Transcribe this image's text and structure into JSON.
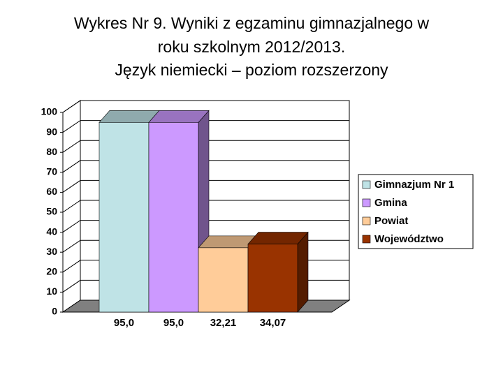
{
  "chart_data": {
    "type": "bar3d",
    "title": [
      "Wykres Nr 9. Wyniki z egzaminu gimnazjalnego   w",
      "roku szkolnym 2012/2013.",
      "Język niemiecki – poziom rozszerzony"
    ],
    "series": [
      {
        "name": "Gimnazjum Nr 1",
        "color": "#bfe3e6",
        "values": [
          95.0
        ],
        "value_labels": [
          "95,0"
        ]
      },
      {
        "name": "Gmina",
        "color": "#cc99ff",
        "values": [
          95.0
        ],
        "value_labels": [
          "95,0"
        ]
      },
      {
        "name": "Powiat",
        "color": "#ffcc99",
        "values": [
          32.21
        ],
        "value_labels": [
          "32,21"
        ]
      },
      {
        "name": "Województwo",
        "color": "#993300",
        "values": [
          34.07
        ],
        "value_labels": [
          "34,07"
        ]
      }
    ],
    "ylim": [
      0,
      100
    ],
    "yticks": [
      0,
      10,
      20,
      30,
      40,
      50,
      60,
      70,
      80,
      90,
      100
    ],
    "grid": true,
    "legend": "right"
  }
}
